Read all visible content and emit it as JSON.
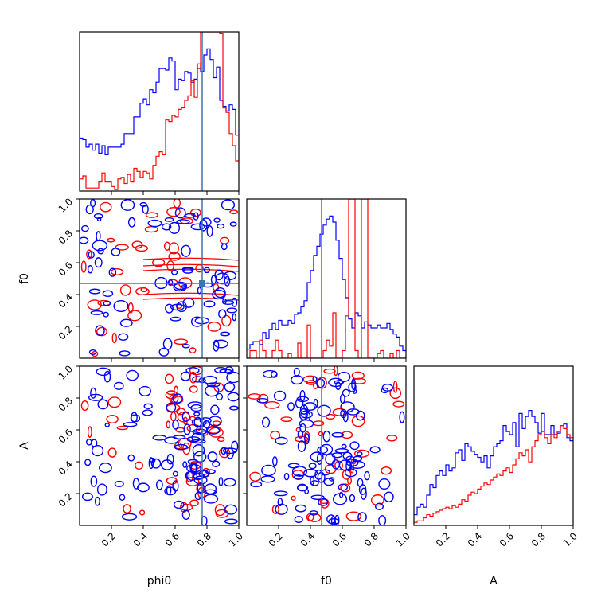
{
  "chart_data": {
    "type": "corner",
    "parameters": [
      "phi0",
      "f0",
      "A"
    ],
    "axis_labels": {
      "phi0": "phi0",
      "f0": "f0",
      "A": "A"
    },
    "ranges": {
      "phi0": [
        0.0,
        1.0
      ],
      "f0": [
        0.0,
        1.0
      ],
      "A": [
        0.0,
        1.0
      ]
    },
    "tick_labels": [
      "0.2",
      "0.4",
      "0.6",
      "0.8",
      "1.0"
    ],
    "truth": {
      "phi0": 0.77,
      "f0": 0.47
    },
    "truth_color": "#3a75b0",
    "series": [
      {
        "color": "#0000ff"
      },
      {
        "color": "#ff0000"
      }
    ],
    "histograms": {
      "phi0": {
        "bins": 50,
        "blue": [
          0.35,
          0.34,
          0.29,
          0.31,
          0.27,
          0.31,
          0.25,
          0.3,
          0.24,
          0.29,
          0.29,
          0.29,
          0.29,
          0.31,
          0.38,
          0.38,
          0.38,
          0.49,
          0.49,
          0.58,
          0.61,
          0.57,
          0.67,
          0.65,
          0.72,
          0.81,
          0.81,
          0.8,
          0.88,
          0.86,
          0.67,
          0.74,
          0.73,
          0.79,
          0.78,
          0.72,
          0.74,
          0.84,
          0.79,
          0.9,
          0.94,
          0.87,
          0.75,
          0.82,
          0.6,
          0.56,
          0.53,
          0.57,
          0.54,
          0.37
        ],
        "red": [
          0.08,
          0.1,
          0.02,
          0.02,
          0.02,
          0.02,
          0.06,
          0.12,
          0.06,
          0.06,
          0.03,
          0.01,
          0.08,
          0.09,
          0.05,
          0.11,
          0.06,
          0.15,
          0.13,
          0.09,
          0.13,
          0.12,
          0.08,
          0.17,
          0.23,
          0.26,
          0.24,
          0.47,
          0.46,
          0.5,
          0.49,
          0.54,
          0.55,
          0.6,
          0.63,
          0.73,
          0.62,
          0.81,
          1.06,
          1.1,
          1.1,
          1.08,
          1.2,
          1.08,
          1.04,
          0.55,
          0.52,
          0.38,
          0.3,
          0.2
        ]
      },
      "f0": {
        "bins": 50,
        "blue": [
          0.06,
          0.09,
          0.11,
          0.11,
          0.09,
          0.17,
          0.13,
          0.19,
          0.23,
          0.19,
          0.25,
          0.22,
          0.22,
          0.25,
          0.23,
          0.29,
          0.3,
          0.34,
          0.38,
          0.5,
          0.58,
          0.68,
          0.74,
          0.82,
          0.88,
          0.92,
          0.94,
          0.9,
          0.78,
          0.66,
          0.52,
          0.4,
          0.26,
          0.2,
          0.3,
          0.28,
          0.2,
          0.24,
          0.22,
          0.2,
          0.2,
          0.22,
          0.2,
          0.2,
          0.23,
          0.19,
          0.16,
          0.14,
          0.08,
          0.05
        ],
        "red": [
          0.0,
          0.05,
          0.05,
          0.0,
          0.12,
          0.05,
          0.0,
          0.0,
          0.05,
          0.12,
          0.05,
          0.0,
          0.0,
          0.03,
          0.0,
          0.0,
          0.1,
          0.0,
          0.0,
          0.22,
          0.0,
          0.0,
          0.0,
          0.0,
          0.05,
          0.12,
          0.08,
          0.3,
          0.0,
          0.0,
          0.05,
          0.28,
          1.25,
          1.25,
          0.05,
          0.0,
          1.25,
          1.25,
          0.0,
          0.0,
          0.0,
          0.03,
          0.05,
          0.0,
          0.0,
          0.03,
          0.0,
          0.05,
          0.0,
          0.0
        ]
      },
      "A": {
        "bins": 50,
        "blue": [
          0.07,
          0.12,
          0.14,
          0.12,
          0.2,
          0.27,
          0.25,
          0.33,
          0.36,
          0.33,
          0.4,
          0.36,
          0.38,
          0.48,
          0.5,
          0.43,
          0.54,
          0.52,
          0.49,
          0.47,
          0.45,
          0.42,
          0.46,
          0.38,
          0.46,
          0.52,
          0.54,
          0.56,
          0.66,
          0.62,
          0.6,
          0.68,
          0.52,
          0.74,
          0.64,
          0.72,
          0.76,
          0.72,
          0.68,
          0.61,
          0.74,
          0.6,
          0.6,
          0.66,
          0.6,
          0.61,
          0.66,
          0.67,
          0.58,
          0.56
        ],
        "red": [
          0.02,
          0.03,
          0.03,
          0.05,
          0.07,
          0.06,
          0.08,
          0.09,
          0.1,
          0.11,
          0.12,
          0.11,
          0.13,
          0.12,
          0.14,
          0.17,
          0.16,
          0.2,
          0.22,
          0.21,
          0.24,
          0.26,
          0.28,
          0.27,
          0.3,
          0.32,
          0.34,
          0.33,
          0.36,
          0.38,
          0.35,
          0.4,
          0.44,
          0.48,
          0.46,
          0.5,
          0.42,
          0.52,
          0.56,
          0.6,
          0.62,
          0.58,
          0.54,
          0.6,
          0.58,
          0.62,
          0.66,
          0.64,
          0.6,
          0.58
        ]
      }
    }
  }
}
